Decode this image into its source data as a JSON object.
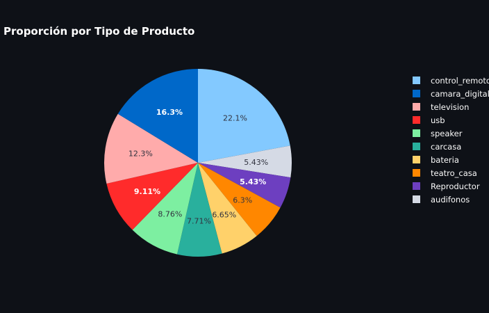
{
  "chart_data": {
    "type": "pie",
    "title": "Proporción por Tipo de Producto",
    "slices": [
      {
        "label": "control_remoto",
        "percent": 22.1,
        "label_text": "22.1%",
        "color": "#83c9ff",
        "text_color": "#31333f"
      },
      {
        "label": "audifonos",
        "percent": 5.43,
        "label_text": "5.43%",
        "color": "#d5dae5",
        "text_color": "#31333f"
      },
      {
        "label": "Reproductor",
        "percent": 5.43,
        "label_text": "5.43%",
        "color": "#6d3fc0",
        "text_color": "#ffffff"
      },
      {
        "label": "teatro_casa",
        "percent": 6.3,
        "label_text": "6.3%",
        "color": "#ff8700",
        "text_color": "#31333f"
      },
      {
        "label": "bateria",
        "percent": 6.65,
        "label_text": "6.65%",
        "color": "#ffd16a",
        "text_color": "#31333f"
      },
      {
        "label": "carcasa",
        "percent": 7.71,
        "label_text": "7.71%",
        "color": "#29b09d",
        "text_color": "#31333f"
      },
      {
        "label": "speaker",
        "percent": 8.76,
        "label_text": "8.76%",
        "color": "#7defa1",
        "text_color": "#31333f"
      },
      {
        "label": "usb",
        "percent": 9.11,
        "label_text": "9.11%",
        "color": "#ff2b2b",
        "text_color": "#ffffff"
      },
      {
        "label": "television",
        "percent": 12.3,
        "label_text": "12.3%",
        "color": "#ffabab",
        "text_color": "#31333f"
      },
      {
        "label": "camara_digital",
        "percent": 16.3,
        "label_text": "16.3%",
        "color": "#0068c9",
        "text_color": "#ffffff"
      }
    ],
    "legend": {
      "placement": "right",
      "items": [
        {
          "label": "control_remoto",
          "color": "#83c9ff"
        },
        {
          "label": "camara_digital",
          "color": "#0068c9"
        },
        {
          "label": "television",
          "color": "#ffabab"
        },
        {
          "label": "usb",
          "color": "#ff2b2b"
        },
        {
          "label": "speaker",
          "color": "#7defa1"
        },
        {
          "label": "carcasa",
          "color": "#29b09d"
        },
        {
          "label": "bateria",
          "color": "#ffd16a"
        },
        {
          "label": "teatro_casa",
          "color": "#ff8700"
        },
        {
          "label": "Reproductor",
          "color": "#6d3fc0"
        },
        {
          "label": "audifonos",
          "color": "#d5dae5"
        }
      ]
    },
    "background": "#0e1117"
  }
}
